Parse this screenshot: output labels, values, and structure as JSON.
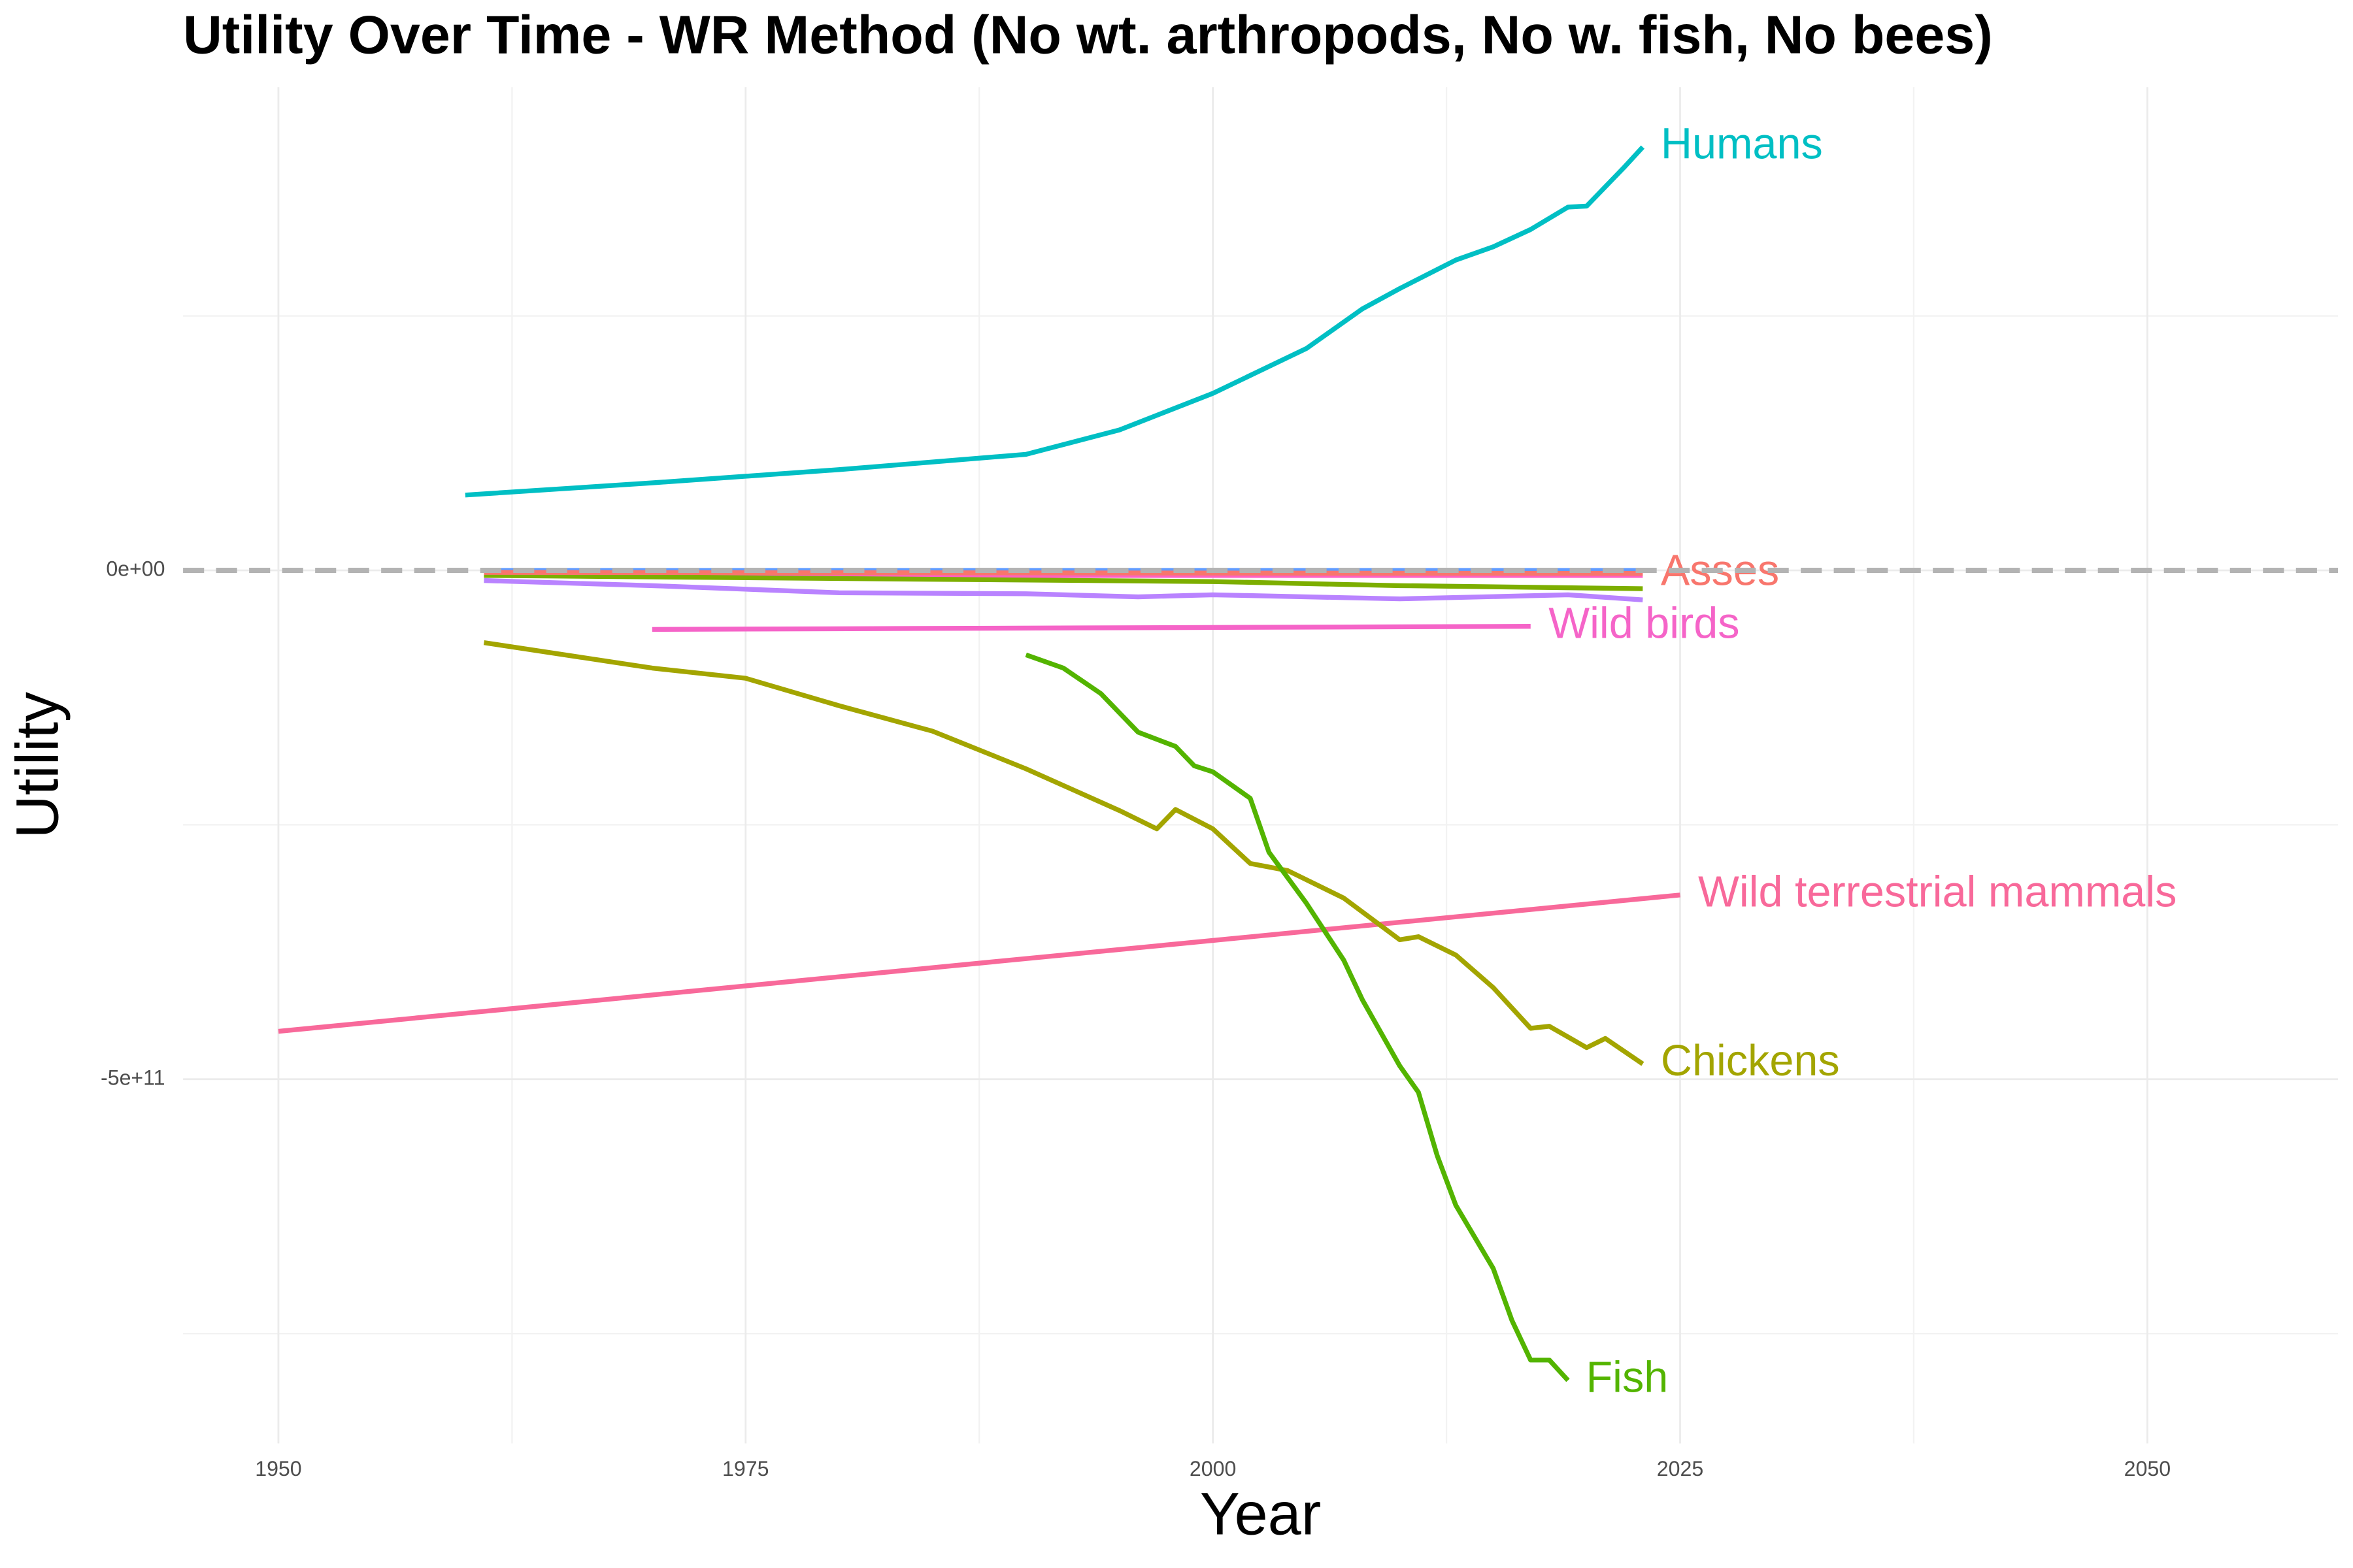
{
  "chart_data": {
    "type": "line",
    "title": "Utility Over Time - WR Method (No wt. arthropods, No w. fish, No bees)",
    "x_label": "Year",
    "y_label": "Utility",
    "xlim": [
      1944.9,
      2060.2
    ],
    "ylim": [
      -858000000000.0,
      475000000000.0
    ],
    "xticks": [
      1950,
      1975,
      2000,
      2025,
      2050
    ],
    "yticks": [
      {
        "value": -500000000000.0,
        "label": "-5e+11"
      },
      {
        "value": 0,
        "label": "0e+00"
      }
    ],
    "grid": true,
    "hline": 0,
    "series": [
      {
        "name": "Humans",
        "color": "#00BFC4",
        "x": [
          1960,
          1970,
          1980,
          1990,
          1995,
          2000,
          2005,
          2008,
          2010,
          2013,
          2015,
          2017,
          2019,
          2020,
          2022,
          2023
        ],
        "values": [
          74000000000.0,
          86000000000.0,
          99000000000.0,
          114000000000.0,
          138000000000.0,
          174000000000.0,
          218000000000.0,
          257000000000.0,
          277000000000.0,
          305000000000.0,
          318000000000.0,
          335000000000.0,
          357000000000.0,
          358000000000.0,
          396000000000.0,
          416000000000.0
        ]
      },
      {
        "color": "#619CFF",
        "x": [
          1961,
          2023
        ],
        "values": [
          0,
          0
        ]
      },
      {
        "color": "#FF61C3",
        "x": [
          1961,
          2023
        ],
        "values": [
          -5000000000.0,
          -5000000000.0
        ]
      },
      {
        "color": "#B983FF",
        "x": [
          1961,
          1970,
          1980,
          1990,
          1996,
          2000,
          2010,
          2019,
          2023
        ],
        "values": [
          -10000000000.0,
          -15000000000.0,
          -22000000000.0,
          -23000000000.0,
          -26000000000.0,
          -24000000000.0,
          -28000000000.0,
          -24000000000.0,
          -29000000000.0
        ]
      },
      {
        "color": "#7CAE00",
        "x": [
          1961,
          1980,
          2000,
          2010,
          2023
        ],
        "values": [
          -5000000000.0,
          -8000000000.0,
          -11000000000.0,
          -15000000000.0,
          -18000000000.0
        ]
      },
      {
        "name": "Asses",
        "color": "#F8766D",
        "x": [
          1961,
          2023
        ],
        "values": [
          -2000000000.0,
          -3000000000.0
        ]
      },
      {
        "name": "Wild birds",
        "color": "#F564C8",
        "x": [
          1970,
          2017
        ],
        "values": [
          -58000000000.0,
          -55000000000.0
        ]
      },
      {
        "name": "Wild terrestrial mammals",
        "color": "#F8699A",
        "x": [
          1950,
          2025
        ],
        "values": [
          -453000000000.0,
          -319000000000.0
        ]
      },
      {
        "name": "Chickens",
        "color": "#A3A500",
        "x": [
          1961,
          1970,
          1975,
          1980,
          1985,
          1990,
          1995,
          1997,
          1998,
          2000,
          2002,
          2004,
          2007,
          2010,
          2011,
          2013,
          2015,
          2017,
          2018,
          2020,
          2021,
          2023
        ],
        "values": [
          -71000000000.0,
          -96000000000.0,
          -106000000000.0,
          -133000000000.0,
          -158000000000.0,
          -195000000000.0,
          -236000000000.0,
          -254000000000.0,
          -235000000000.0,
          -254000000000.0,
          -288000000000.0,
          -295000000000.0,
          -322000000000.0,
          -363000000000.0,
          -360000000000.0,
          -378000000000.0,
          -410000000000.0,
          -450000000000.0,
          -448000000000.0,
          -469000000000.0,
          -460000000000.0,
          -485000000000.0
        ]
      },
      {
        "name": "Fish",
        "color": "#53B400",
        "x": [
          1990,
          1992,
          1994,
          1996,
          1998,
          1999,
          2000,
          2002,
          2003,
          2005,
          2007,
          2008,
          2010,
          2011,
          2012,
          2013,
          2015,
          2016,
          2017,
          2018,
          2019
        ],
        "values": [
          -83000000000.0,
          -96000000000.0,
          -121000000000.0,
          -159000000000.0,
          -173000000000.0,
          -192000000000.0,
          -198000000000.0,
          -224000000000.0,
          -277000000000.0,
          -327000000000.0,
          -383000000000.0,
          -422000000000.0,
          -487000000000.0,
          -513000000000.0,
          -575000000000.0,
          -624000000000.0,
          -686000000000.0,
          -737000000000.0,
          -776000000000.0,
          -776000000000.0,
          -796000000000.0
        ]
      }
    ]
  }
}
